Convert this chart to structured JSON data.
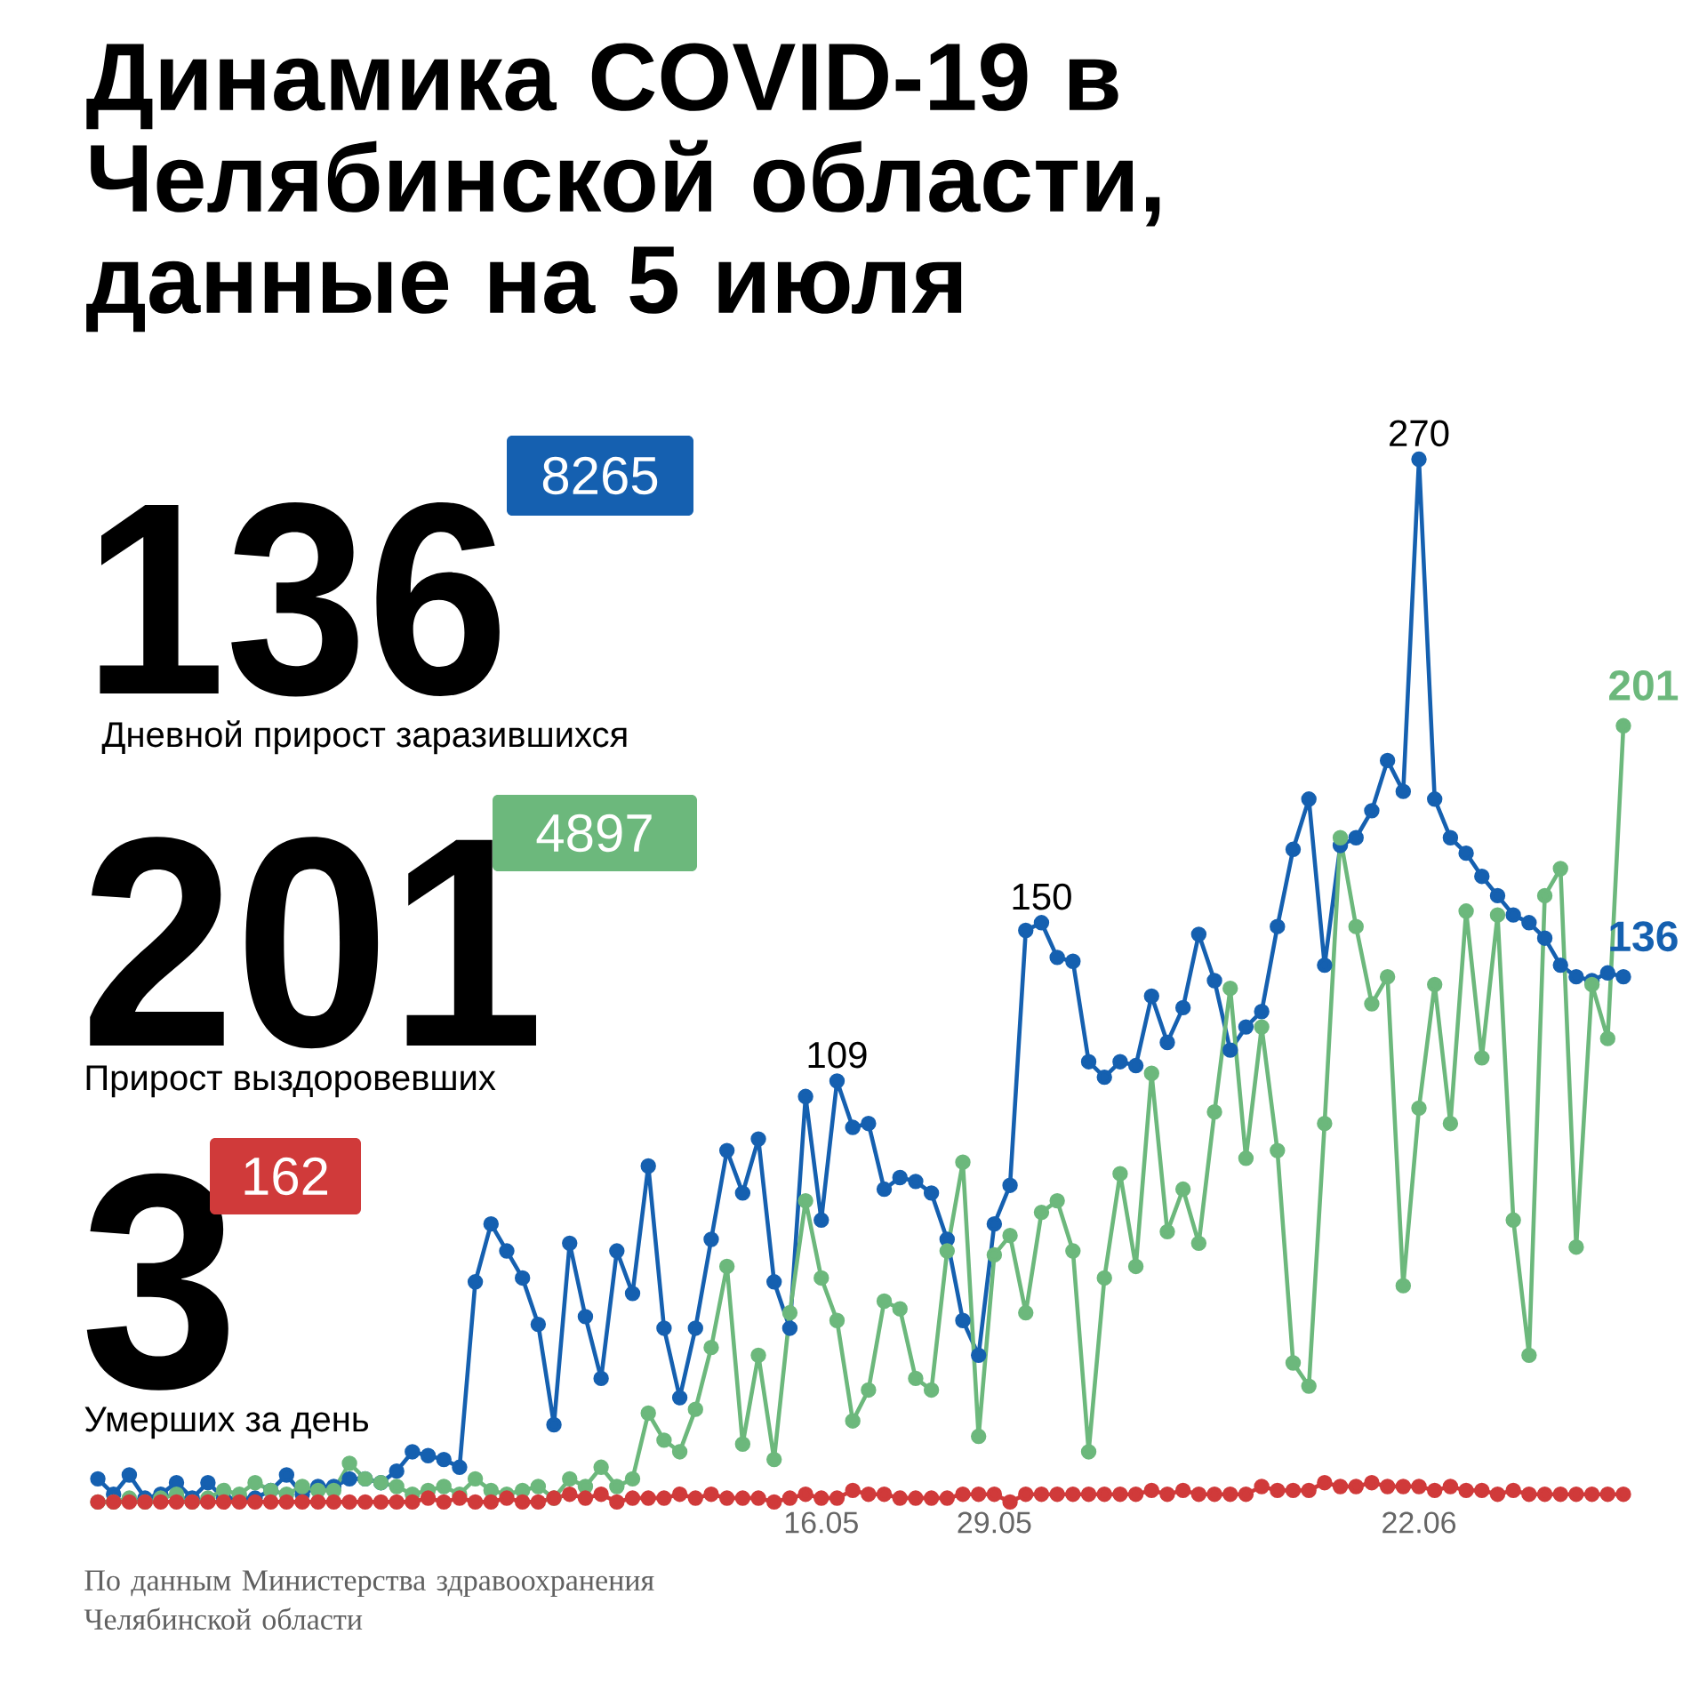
{
  "chart_data": {
    "type": "line",
    "title": "Динамика COVID-19 в Челябинской области, данные на 5 июля",
    "categories": [
      null,
      null,
      null,
      null,
      null,
      null,
      null,
      null,
      null,
      null,
      null,
      null,
      null,
      null,
      null,
      null,
      null,
      null,
      null,
      null,
      null,
      null,
      null,
      null,
      null,
      null,
      null,
      null,
      null,
      null,
      null,
      null,
      null,
      null,
      null,
      null,
      null,
      null,
      null,
      null,
      null,
      null,
      null,
      null,
      null,
      null,
      "16.05",
      null,
      null,
      null,
      null,
      null,
      null,
      null,
      null,
      null,
      null,
      "29.05",
      null,
      null,
      null,
      null,
      null,
      null,
      null,
      null,
      null,
      null,
      null,
      null,
      null,
      null,
      null,
      null,
      null,
      null,
      null,
      null,
      null,
      null,
      null,
      null,
      null,
      null,
      "22.06",
      null,
      null,
      null,
      null,
      null,
      null,
      null,
      null,
      null,
      null,
      null,
      null,
      null
    ],
    "series": [
      {
        "color": "#1560b0",
        "values": [
          6,
          2,
          7,
          1,
          2,
          5,
          1,
          5,
          1,
          1,
          1,
          3,
          7,
          2,
          4,
          4,
          6,
          6,
          5,
          8,
          13,
          12,
          11,
          9,
          57,
          72,
          65,
          58,
          46,
          20,
          67,
          48,
          32,
          65,
          54,
          87,
          45,
          27,
          45,
          68,
          91,
          80,
          94,
          57,
          45,
          105,
          73,
          109,
          97,
          98,
          81,
          84,
          83,
          80,
          68,
          47,
          38,
          72,
          82,
          148,
          150,
          141,
          140,
          114,
          110,
          114,
          113,
          131,
          119,
          128,
          147,
          135,
          117,
          123,
          127,
          149,
          169,
          182,
          139,
          170,
          172,
          179,
          192,
          184,
          270,
          182,
          172,
          168,
          162,
          157,
          152,
          150,
          146,
          139,
          136,
          135,
          137,
          136
        ],
        "value_labels": [
          null,
          null,
          null,
          null,
          null,
          null,
          null,
          null,
          null,
          null,
          null,
          null,
          null,
          null,
          null,
          null,
          null,
          null,
          null,
          null,
          null,
          null,
          null,
          null,
          null,
          null,
          null,
          null,
          null,
          null,
          null,
          null,
          null,
          null,
          null,
          null,
          null,
          null,
          null,
          null,
          null,
          null,
          null,
          null,
          null,
          null,
          null,
          "109",
          null,
          null,
          null,
          null,
          null,
          null,
          null,
          null,
          null,
          null,
          null,
          null,
          "150",
          null,
          null,
          null,
          null,
          null,
          null,
          null,
          null,
          null,
          null,
          null,
          null,
          null,
          null,
          null,
          null,
          null,
          null,
          null,
          null,
          null,
          null,
          null,
          "270",
          null,
          null,
          null,
          null,
          null,
          null,
          null,
          null,
          null,
          null,
          null,
          null,
          "136"
        ]
      },
      {
        "color": "#6cb87c",
        "values": [
          0,
          0,
          1,
          0,
          1,
          2,
          0,
          1,
          3,
          2,
          5,
          3,
          2,
          4,
          3,
          3,
          10,
          6,
          5,
          4,
          2,
          3,
          4,
          2,
          6,
          3,
          2,
          3,
          4,
          1,
          6,
          4,
          9,
          4,
          6,
          23,
          16,
          13,
          24,
          40,
          61,
          15,
          38,
          11,
          49,
          78,
          58,
          47,
          21,
          29,
          52,
          50,
          32,
          29,
          65,
          88,
          17,
          64,
          69,
          49,
          75,
          78,
          65,
          13,
          58,
          85,
          61,
          111,
          70,
          81,
          67,
          101,
          133,
          89,
          123,
          91,
          36,
          30,
          98,
          172,
          149,
          129,
          136,
          56,
          102,
          134,
          98,
          153,
          115,
          152,
          73,
          38,
          157,
          164,
          66,
          134,
          120,
          201
        ],
        "value_labels": [
          null,
          null,
          null,
          null,
          null,
          null,
          null,
          null,
          null,
          null,
          null,
          null,
          null,
          null,
          null,
          null,
          null,
          null,
          null,
          null,
          null,
          null,
          null,
          null,
          null,
          null,
          null,
          null,
          null,
          null,
          null,
          null,
          null,
          null,
          null,
          null,
          null,
          null,
          null,
          null,
          null,
          null,
          null,
          null,
          null,
          null,
          null,
          null,
          null,
          null,
          null,
          null,
          null,
          null,
          null,
          null,
          null,
          null,
          null,
          null,
          null,
          null,
          null,
          null,
          null,
          null,
          null,
          null,
          null,
          null,
          null,
          null,
          null,
          null,
          null,
          null,
          null,
          null,
          null,
          null,
          null,
          null,
          null,
          null,
          null,
          null,
          null,
          null,
          null,
          null,
          null,
          null,
          null,
          null,
          null,
          null,
          null,
          "201"
        ]
      },
      {
        "color": "#d03a3a",
        "values": [
          0,
          0,
          0,
          0,
          0,
          0,
          0,
          0,
          0,
          0,
          0,
          0,
          0,
          0,
          0,
          0,
          0,
          0,
          0,
          0,
          0,
          1,
          0,
          1,
          0,
          0,
          1,
          0,
          0,
          1,
          2,
          1,
          2,
          0,
          1,
          1,
          1,
          2,
          1,
          2,
          1,
          1,
          1,
          0,
          1,
          2,
          1,
          1,
          3,
          2,
          2,
          1,
          1,
          1,
          1,
          2,
          2,
          2,
          0,
          2,
          2,
          2,
          2,
          2,
          2,
          2,
          2,
          3,
          2,
          3,
          2,
          2,
          2,
          2,
          4,
          3,
          3,
          3,
          5,
          4,
          4,
          5,
          4,
          4,
          4,
          3,
          4,
          3,
          3,
          2,
          3,
          2,
          2,
          2,
          2,
          2,
          2,
          2
        ]
      }
    ],
    "tick_labels": "x",
    "marker": "circle",
    "annotations": [
      "136",
      "8265",
      "Дневной прирост заразившихся",
      "201",
      "4897",
      "Прирост выздоровевших",
      "3",
      "162",
      "Умерших за день",
      "По данным Министерства здравоохранения Челябинской области"
    ]
  }
}
